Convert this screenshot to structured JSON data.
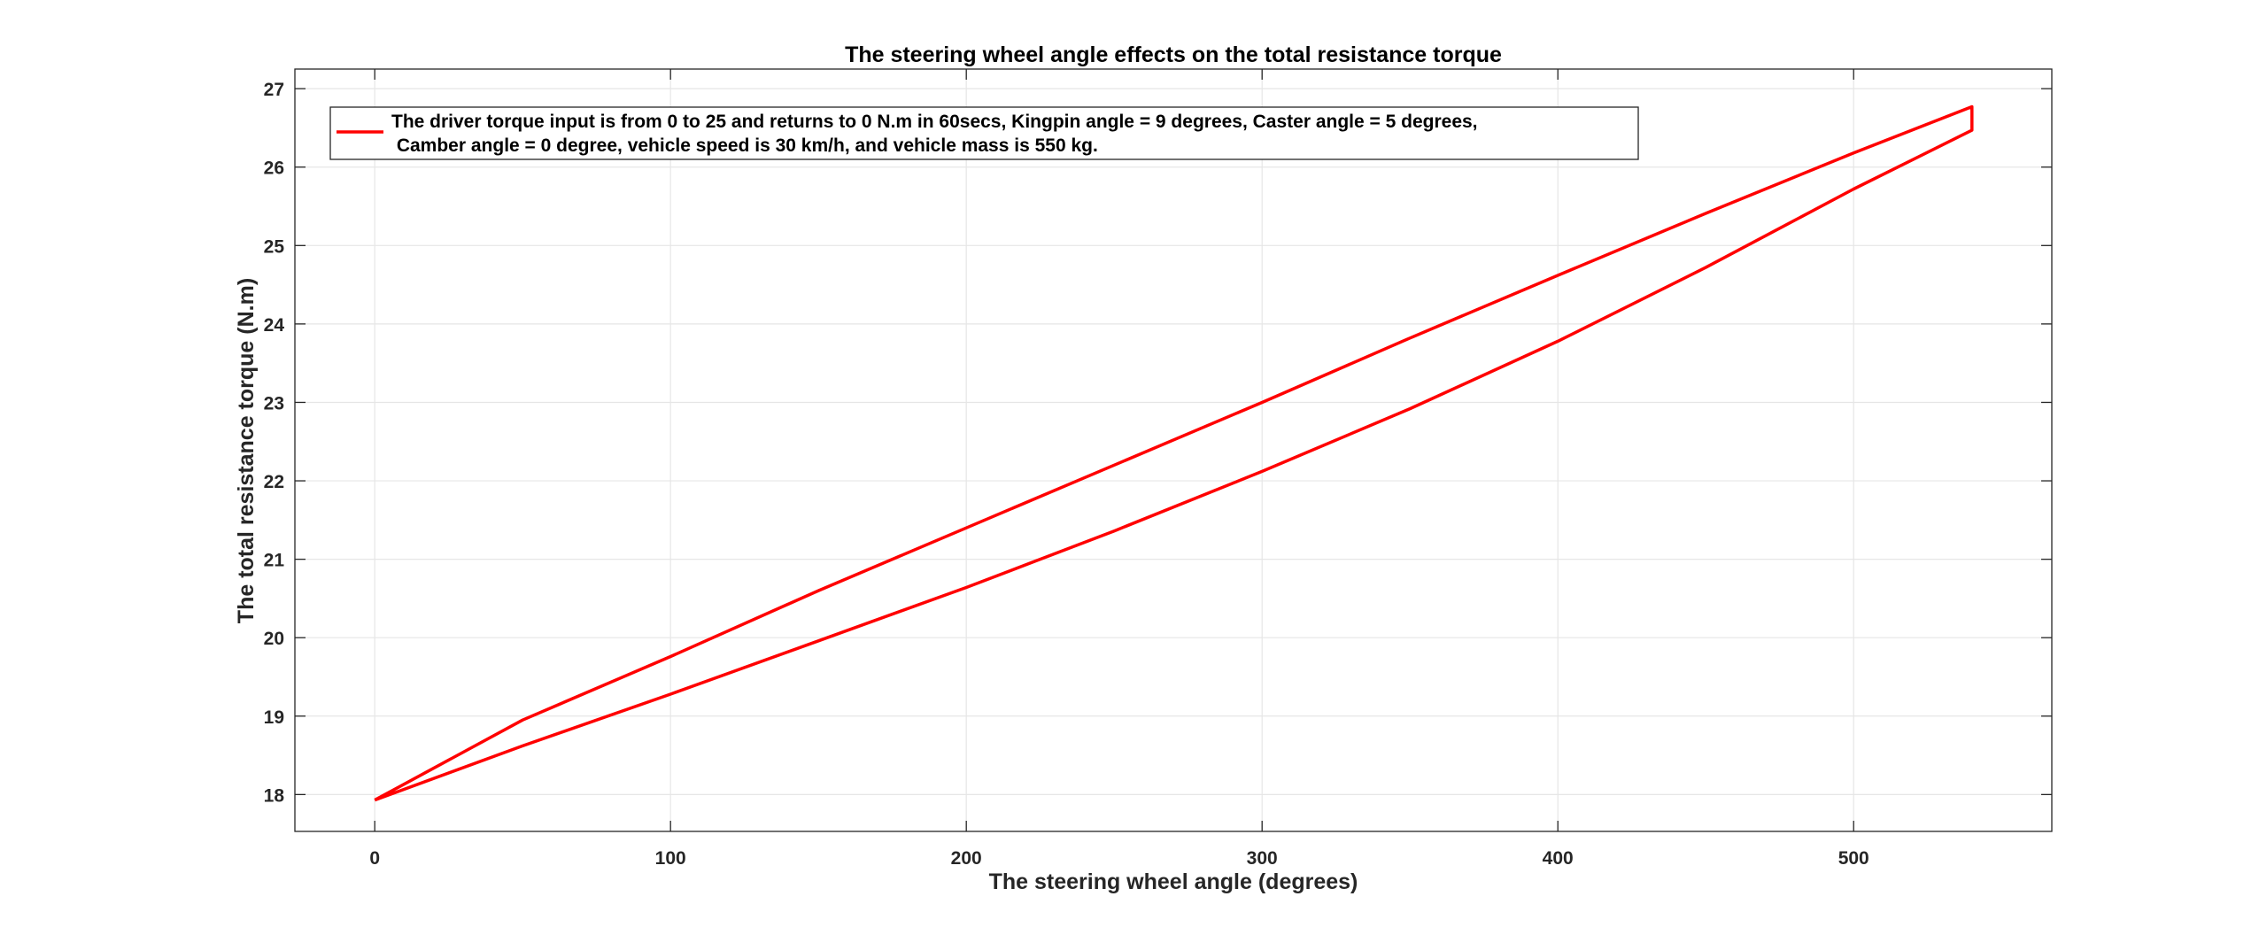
{
  "chart_data": {
    "type": "line",
    "title": "The steering wheel angle effects on the total resistance torque",
    "xlabel": "The steering wheel angle (degrees)",
    "ylabel": "The total resistance torque (N.m)",
    "xlim": [
      -27,
      567
    ],
    "ylim": [
      17.53,
      27.25
    ],
    "xticks": [
      0,
      100,
      200,
      300,
      400,
      500
    ],
    "yticks": [
      18,
      19,
      20,
      21,
      22,
      23,
      24,
      25,
      26,
      27
    ],
    "xtick_labels": [
      "0",
      "100",
      "200",
      "300",
      "400",
      "500"
    ],
    "ytick_labels": [
      "18",
      "19",
      "20",
      "21",
      "22",
      "23",
      "24",
      "25",
      "26",
      "27"
    ],
    "grid": true,
    "legend_position": "top-left",
    "legend": {
      "line1": "The driver torque input is from 0 to 25 and returns to 0 N.m in 60secs, Kingpin angle = 9 degrees, Caster angle = 5 degrees,",
      "line2": " Camber angle = 0 degree, vehicle speed is 30 km/h, and vehicle mass is 550 kg."
    },
    "series": [
      {
        "color": "#ff0000",
        "x": [
          0,
          50,
          100,
          150,
          200,
          250,
          300,
          350,
          400,
          450,
          500,
          540,
          540,
          500,
          450,
          400,
          350,
          300,
          250,
          200,
          150,
          100,
          50,
          0
        ],
        "y": [
          17.93,
          18.62,
          19.28,
          19.96,
          20.64,
          21.36,
          22.12,
          22.92,
          23.78,
          24.72,
          25.72,
          26.47,
          26.77,
          26.18,
          25.41,
          24.62,
          23.82,
          23.0,
          22.2,
          21.4,
          20.6,
          19.76,
          18.95,
          17.93
        ]
      }
    ]
  }
}
